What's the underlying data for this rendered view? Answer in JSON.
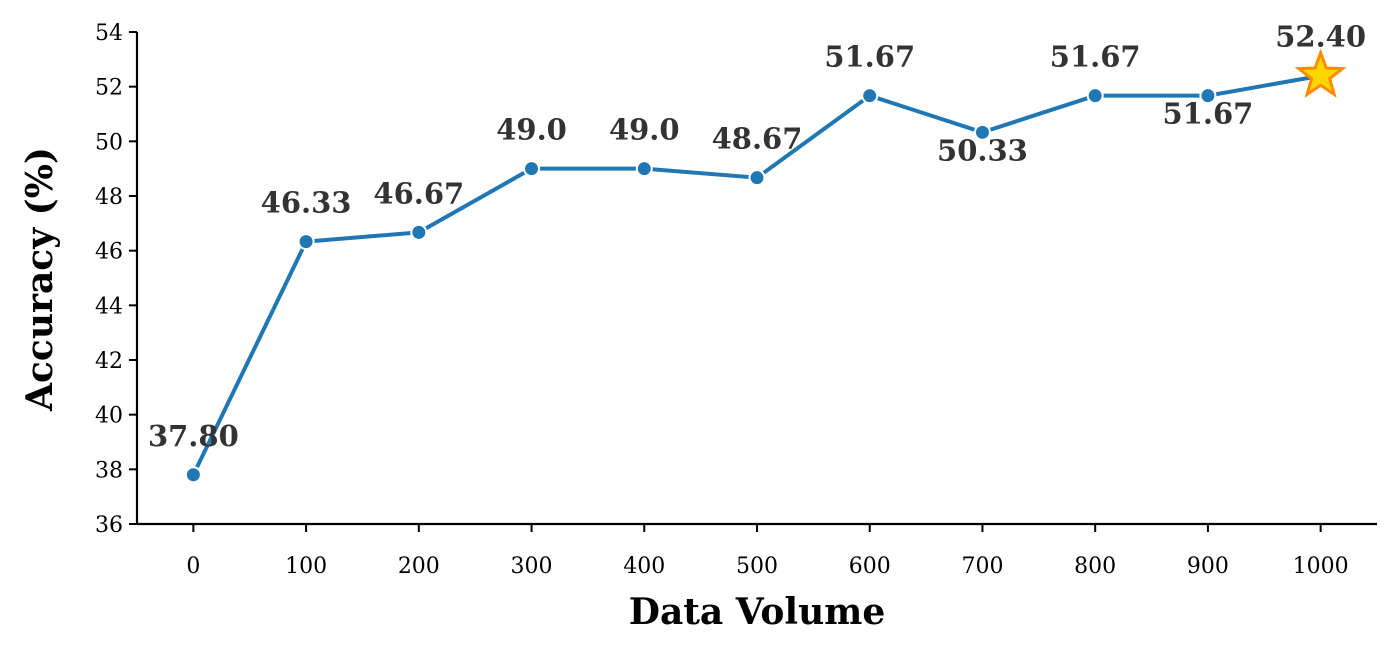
{
  "chart_data": {
    "type": "line",
    "xlabel": "Data Volume",
    "ylabel": "Accuracy (%)",
    "xlim": [
      -50,
      1050
    ],
    "ylim": [
      36,
      54
    ],
    "x_ticks": [
      0,
      100,
      200,
      300,
      400,
      500,
      600,
      700,
      800,
      900,
      1000
    ],
    "y_ticks": [
      36,
      38,
      40,
      42,
      44,
      46,
      48,
      50,
      52,
      54
    ],
    "grid": false,
    "series": [
      {
        "color": "#1f77b4",
        "x": [
          0,
          100,
          200,
          300,
          400,
          500,
          600,
          700,
          800,
          900,
          1000
        ],
        "y": [
          37.8,
          46.33,
          46.67,
          49.0,
          49.0,
          48.67,
          51.67,
          50.33,
          51.67,
          51.67,
          52.4
        ],
        "labels": [
          "37.80",
          "46.33",
          "46.67",
          "49.0",
          "49.0",
          "48.67",
          "51.67",
          "50.33",
          "51.67",
          "51.67",
          "52.40"
        ],
        "label_positions": [
          "above",
          "above",
          "above",
          "above",
          "above",
          "above",
          "above",
          "below",
          "above",
          "below",
          "above"
        ]
      }
    ],
    "highlight": {
      "x": 1000,
      "y": 52.4,
      "marker": "star",
      "fill": "#ffd700",
      "stroke": "#ff8c00"
    }
  }
}
